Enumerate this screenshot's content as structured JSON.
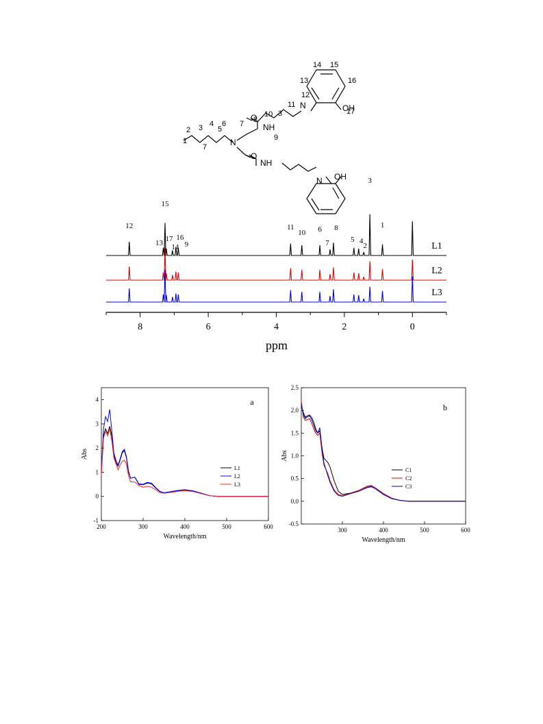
{
  "structure": {
    "labels": [
      "1",
      "2",
      "3",
      "4",
      "5",
      "6",
      "7",
      "7",
      "8",
      "9",
      "10",
      "11",
      "3",
      "12",
      "13",
      "14",
      "15",
      "16",
      "17"
    ],
    "atoms": [
      "N",
      "NH",
      "O",
      "NH",
      "O",
      "N",
      "OH",
      "N",
      "OH"
    ]
  },
  "chart_data": [
    {
      "type": "line",
      "id": "nmr",
      "xlabel": "ppm",
      "xlim": [
        9,
        -1
      ],
      "xticks": [
        8,
        6,
        4,
        2,
        0
      ],
      "series_labels": [
        "L1",
        "L2",
        "L3"
      ],
      "colors": [
        "#000000",
        "#e00000",
        "#0000e0"
      ],
      "peaks": [
        {
          "ppm": 8.32,
          "h": 0.8,
          "label": "12"
        },
        {
          "ppm": 7.27,
          "h": 1.9,
          "label": "15"
        },
        {
          "ppm": 7.32,
          "h": 0.45,
          "label": "13"
        },
        {
          "ppm": 7.23,
          "h": 0.4,
          "label": "17"
        },
        {
          "ppm": 7.05,
          "h": 0.3,
          "label": "14"
        },
        {
          "ppm": 6.95,
          "h": 0.5,
          "label": "16"
        },
        {
          "ppm": 6.88,
          "h": 0.45,
          "label": "9"
        },
        {
          "ppm": 3.58,
          "h": 0.7,
          "label": "11"
        },
        {
          "ppm": 3.25,
          "h": 0.6,
          "label": "10"
        },
        {
          "ppm": 2.72,
          "h": 0.6,
          "label": "6"
        },
        {
          "ppm": 2.42,
          "h": 0.35,
          "label": "7"
        },
        {
          "ppm": 2.32,
          "h": 0.75,
          "label": "8"
        },
        {
          "ppm": 1.72,
          "h": 0.45,
          "label": "5"
        },
        {
          "ppm": 1.58,
          "h": 0.4,
          "label": "4"
        },
        {
          "ppm": 1.43,
          "h": 0.2,
          "label": "2"
        },
        {
          "ppm": 1.25,
          "h": 2.4,
          "label": "3"
        },
        {
          "ppm": 0.88,
          "h": 0.65,
          "label": "1"
        },
        {
          "ppm": 0.0,
          "h": 2.0,
          "label": ""
        }
      ]
    },
    {
      "type": "line",
      "id": "uv-a",
      "panel_label": "a",
      "xlabel": "Wavelength/nm",
      "ylabel": "Abs",
      "xlim": [
        200,
        600
      ],
      "ylim": [
        -1,
        4.5
      ],
      "xticks": [
        200,
        300,
        400,
        500,
        600
      ],
      "yticks": [
        -1,
        0,
        1,
        2,
        3,
        4
      ],
      "x": [
        200,
        205,
        210,
        215,
        220,
        225,
        230,
        235,
        240,
        245,
        250,
        255,
        260,
        265,
        270,
        280,
        290,
        300,
        310,
        320,
        330,
        340,
        350,
        360,
        380,
        400,
        420,
        440,
        460,
        480,
        500,
        550,
        600
      ],
      "series": [
        {
          "name": "L1",
          "color": "#000000",
          "values": [
            0.9,
            2.5,
            2.8,
            2.6,
            2.9,
            2.5,
            1.7,
            1.4,
            1.25,
            1.5,
            1.8,
            1.9,
            1.6,
            1.0,
            0.75,
            0.8,
            0.5,
            0.48,
            0.55,
            0.52,
            0.35,
            0.2,
            0.15,
            0.17,
            0.23,
            0.27,
            0.22,
            0.12,
            0.03,
            0.0,
            0.0,
            0.0,
            0.0
          ]
        },
        {
          "name": "L2",
          "color": "#0000ff",
          "values": [
            1.0,
            2.8,
            3.3,
            3.1,
            3.6,
            2.7,
            1.8,
            1.5,
            1.3,
            1.55,
            1.85,
            1.95,
            1.65,
            1.05,
            0.75,
            0.8,
            0.52,
            0.5,
            0.58,
            0.55,
            0.37,
            0.21,
            0.15,
            0.18,
            0.24,
            0.28,
            0.23,
            0.13,
            0.03,
            0.0,
            0.0,
            0.0,
            0.0
          ]
        },
        {
          "name": "L3",
          "color": "#ff2020",
          "values": [
            0.9,
            2.4,
            2.7,
            2.5,
            2.8,
            2.3,
            1.6,
            1.35,
            1.1,
            1.3,
            1.45,
            1.5,
            1.35,
            0.85,
            0.6,
            0.6,
            0.45,
            0.38,
            0.42,
            0.38,
            0.28,
            0.16,
            0.13,
            0.15,
            0.2,
            0.24,
            0.2,
            0.11,
            0.03,
            0.0,
            0.0,
            0.0,
            0.0
          ]
        }
      ]
    },
    {
      "type": "line",
      "id": "uv-b",
      "panel_label": "b",
      "xlabel": "Wavelength/nm",
      "ylabel": "Abs",
      "xlim": [
        200,
        600
      ],
      "ylim": [
        -0.5,
        2.5
      ],
      "xticks": [
        300,
        400,
        500,
        600
      ],
      "yticks": [
        -0.5,
        0.0,
        0.5,
        1.0,
        1.5,
        2.0,
        2.5
      ],
      "x": [
        200,
        205,
        210,
        215,
        220,
        225,
        230,
        235,
        240,
        245,
        250,
        255,
        260,
        265,
        270,
        280,
        290,
        300,
        320,
        340,
        360,
        370,
        380,
        400,
        420,
        440,
        460,
        480,
        500,
        550,
        600
      ],
      "series": [
        {
          "name": "C1",
          "color": "#000000",
          "values": [
            2.1,
            1.95,
            1.85,
            1.88,
            1.9,
            1.85,
            1.75,
            1.6,
            1.5,
            1.55,
            1.2,
            0.95,
            0.9,
            0.85,
            0.75,
            0.45,
            0.22,
            0.15,
            0.18,
            0.22,
            0.3,
            0.32,
            0.28,
            0.15,
            0.06,
            0.02,
            0.0,
            0.0,
            0.0,
            0.0,
            0.0
          ]
        },
        {
          "name": "C2",
          "color": "#e00000",
          "values": [
            2.2,
            1.85,
            1.78,
            1.8,
            1.82,
            1.72,
            1.6,
            1.5,
            1.45,
            1.5,
            1.1,
            0.8,
            0.7,
            0.6,
            0.45,
            0.25,
            0.15,
            0.12,
            0.18,
            0.24,
            0.33,
            0.35,
            0.3,
            0.17,
            0.07,
            0.02,
            0.0,
            0.0,
            0.0,
            0.0,
            0.0
          ]
        },
        {
          "name": "C3",
          "color": "#0000c8",
          "values": [
            2.15,
            1.9,
            1.82,
            1.86,
            1.88,
            1.8,
            1.68,
            1.55,
            1.5,
            1.62,
            1.2,
            0.85,
            0.7,
            0.55,
            0.42,
            0.22,
            0.13,
            0.11,
            0.17,
            0.22,
            0.31,
            0.33,
            0.28,
            0.15,
            0.06,
            0.02,
            0.0,
            0.0,
            0.0,
            0.0,
            0.0
          ]
        }
      ]
    }
  ]
}
